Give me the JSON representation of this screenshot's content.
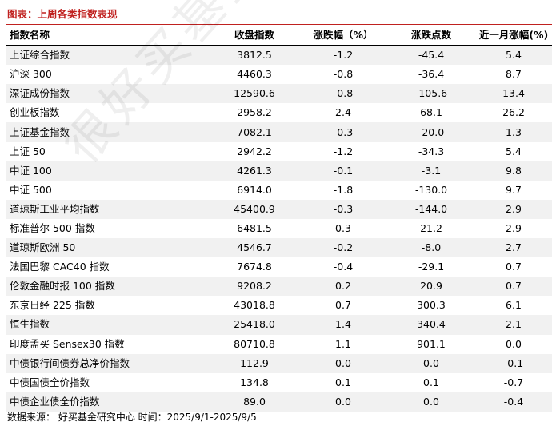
{
  "title": "图表：上周各类指数表现",
  "headers": [
    "指数名称",
    "收盘指数",
    "涨跌幅（%）",
    "涨跌点数",
    "近一月涨幅(%)"
  ],
  "rows": [
    [
      "上证综合指数",
      "3812.5",
      "-1.2",
      "-45.4",
      "5.4"
    ],
    [
      "沪深 300",
      "4460.3",
      "-0.8",
      "-36.4",
      "8.7"
    ],
    [
      "深证成份指数",
      "12590.6",
      "-0.8",
      "-105.6",
      "13.4"
    ],
    [
      "创业板指数",
      "2958.2",
      "2.4",
      "68.1",
      "26.2"
    ],
    [
      "上证基金指数",
      "7082.1",
      "-0.3",
      "-20.0",
      "1.3"
    ],
    [
      "上证 50",
      "2942.2",
      "-1.2",
      "-34.3",
      "5.4"
    ],
    [
      "中证 100",
      "4261.3",
      "-0.1",
      "-3.1",
      "9.8"
    ],
    [
      "中证 500",
      "6914.0",
      "-1.8",
      "-130.0",
      "9.7"
    ],
    [
      "道琼斯工业平均指数",
      "45400.9",
      "-0.3",
      "-144.0",
      "2.9"
    ],
    [
      "标准普尔 500 指数",
      "6481.5",
      "0.3",
      "21.2",
      "2.9"
    ],
    [
      "道琼斯欧洲 50",
      "4546.7",
      "-0.2",
      "-8.0",
      "2.7"
    ],
    [
      "法国巴黎 CAC40 指数",
      "7674.8",
      "-0.4",
      "-29.1",
      "0.7"
    ],
    [
      "伦敦金融时报 100 指数",
      "9208.2",
      "0.2",
      "20.9",
      "0.7"
    ],
    [
      "东京日经 225 指数",
      "43018.8",
      "0.7",
      "300.3",
      "6.1"
    ],
    [
      "恒生指数",
      "25418.0",
      "1.4",
      "340.4",
      "2.1"
    ],
    [
      "印度孟买 Sensex30 指数",
      "80710.8",
      "1.1",
      "901.1",
      "0.0"
    ],
    [
      "中债银行间债券总净价指数",
      "112.9",
      "0.0",
      "0.0",
      "-0.1"
    ],
    [
      "中债国债全价指数",
      "134.8",
      "0.1",
      "0.1",
      "-0.7"
    ],
    [
      "中债企业债全价指数",
      "89.0",
      "0.0",
      "0.0",
      "-0.4"
    ]
  ],
  "source": "数据来源：  好买基金研究中心 时间：2025/9/1-2025/9/5",
  "watermark": "很好买基金指定接收人",
  "colors": {
    "accent": "#c0211f",
    "stripe": "#f1f1f1"
  }
}
